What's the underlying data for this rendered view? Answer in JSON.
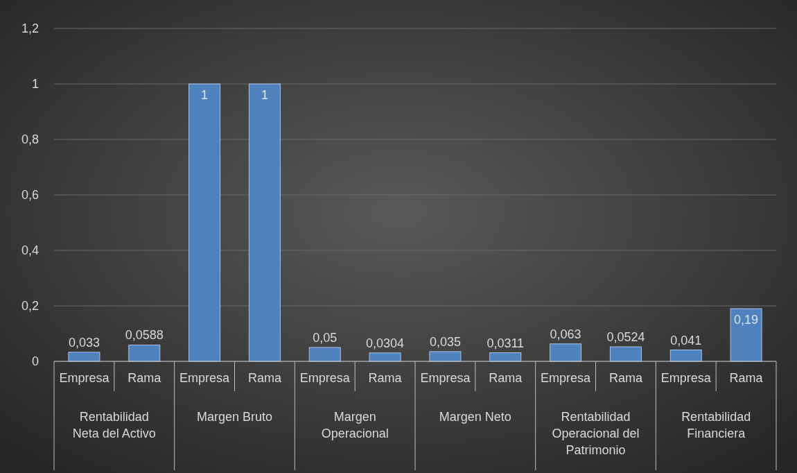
{
  "chart_data": {
    "type": "bar",
    "categories": [
      "Empresa",
      "Rama",
      "Empresa",
      "Rama",
      "Empresa",
      "Rama",
      "Empresa",
      "Rama",
      "Empresa",
      "Rama",
      "Empresa",
      "Rama"
    ],
    "values": [
      0.033,
      0.0588,
      1,
      1,
      0.05,
      0.0304,
      0.035,
      0.0311,
      0.063,
      0.0524,
      0.041,
      0.19
    ],
    "value_labels": [
      "0,033",
      "0,0588",
      "1",
      "1",
      "0,05",
      "0,0304",
      "0,035",
      "0,0311",
      "0,063",
      "0,0524",
      "0,041",
      "0,19"
    ],
    "color": "#4f81bd",
    "annotations": [
      "Rentabilidad Neta del Activo",
      "Margen Bruto",
      "Margen Operacional",
      "Margen Neto",
      "Rentabilidad Operacional del Patrimonio",
      "Rentabilidad Financiera"
    ],
    "ylim": [
      0,
      1.2
    ],
    "yticks": [
      {
        "value": 0,
        "label": "0"
      },
      {
        "value": 0.2,
        "label": "0,2"
      },
      {
        "value": 0.4,
        "label": "0,4"
      },
      {
        "value": 0.6,
        "label": "0,6"
      },
      {
        "value": 0.8,
        "label": "0,8"
      },
      {
        "value": 1,
        "label": "1"
      },
      {
        "value": 1.2,
        "label": "1,2"
      }
    ],
    "grid": "y"
  }
}
